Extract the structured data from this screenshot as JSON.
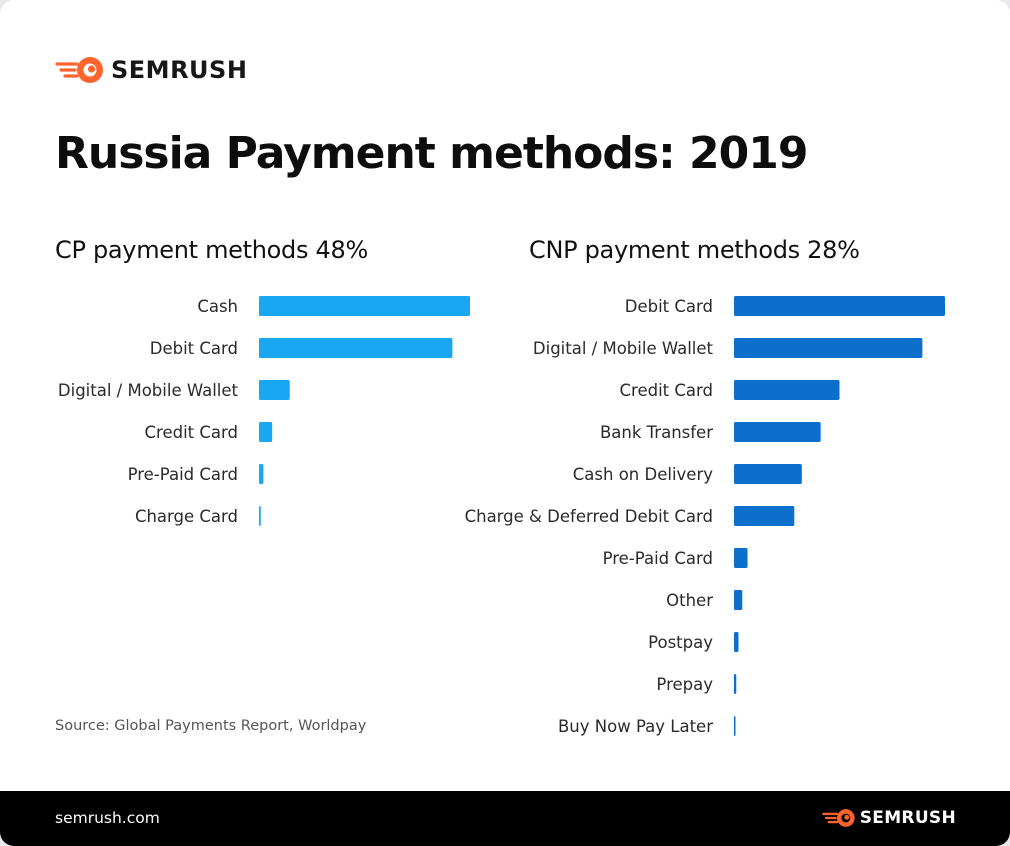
{
  "brand": {
    "name": "SEMRUSH",
    "accent_color": "#ff642d",
    "logo_icon": "semrush-fireball-icon"
  },
  "title": "Russia Payment methods: 2019",
  "source": "Source: Global Payments Report, Worldpay",
  "footer": {
    "site": "semrush.com",
    "brand_name": "SEMRUSH"
  },
  "chart_data": [
    {
      "type": "bar",
      "orientation": "horizontal",
      "title": "CP payment methods 48%",
      "color": "#19a7f2",
      "categories": [
        "Cash",
        "Debit Card",
        "Digital / Mobile Wallet",
        "Credit Card",
        "Pre-Paid Card",
        "Charge Card"
      ],
      "values": [
        48,
        44,
        7,
        3,
        1,
        0.4
      ],
      "axis_labels_shown": false,
      "grid": false
    },
    {
      "type": "bar",
      "orientation": "horizontal",
      "title": "CNP payment methods 28%",
      "color": "#0c6fcb",
      "categories": [
        "Debit Card",
        "Digital / Mobile Wallet",
        "Credit Card",
        "Bank Transfer",
        "Cash on Delivery",
        "Charge & Deferred Debit Card",
        "Pre-Paid Card",
        "Other",
        "Postpay",
        "Prepay",
        "Buy Now Pay Later"
      ],
      "values": [
        28,
        25,
        14,
        11.5,
        9,
        8,
        1.8,
        1.1,
        0.6,
        0.3,
        0.1
      ],
      "axis_labels_shown": false,
      "grid": false
    }
  ]
}
